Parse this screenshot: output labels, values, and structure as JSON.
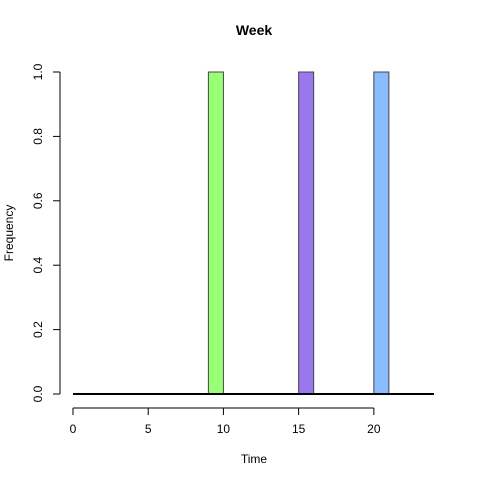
{
  "chart_data": {
    "type": "bar",
    "title": "Week",
    "xlabel": "Time",
    "ylabel": "Frequency",
    "xlim": [
      0,
      24
    ],
    "ylim": [
      0,
      1
    ],
    "x_ticks": [
      "0",
      "5",
      "10",
      "15",
      "20"
    ],
    "y_ticks": [
      "0.0",
      "0.2",
      "0.4",
      "0.6",
      "0.8",
      "1.0"
    ],
    "bars": [
      {
        "x_start": 9,
        "x_end": 10,
        "value": 1,
        "color": "#99ff77"
      },
      {
        "x_start": 15,
        "x_end": 16,
        "value": 1,
        "color": "#9977ee"
      },
      {
        "x_start": 20,
        "x_end": 21,
        "value": 1,
        "color": "#88bbff"
      }
    ],
    "grid": false,
    "baseline_color": "#000000"
  }
}
